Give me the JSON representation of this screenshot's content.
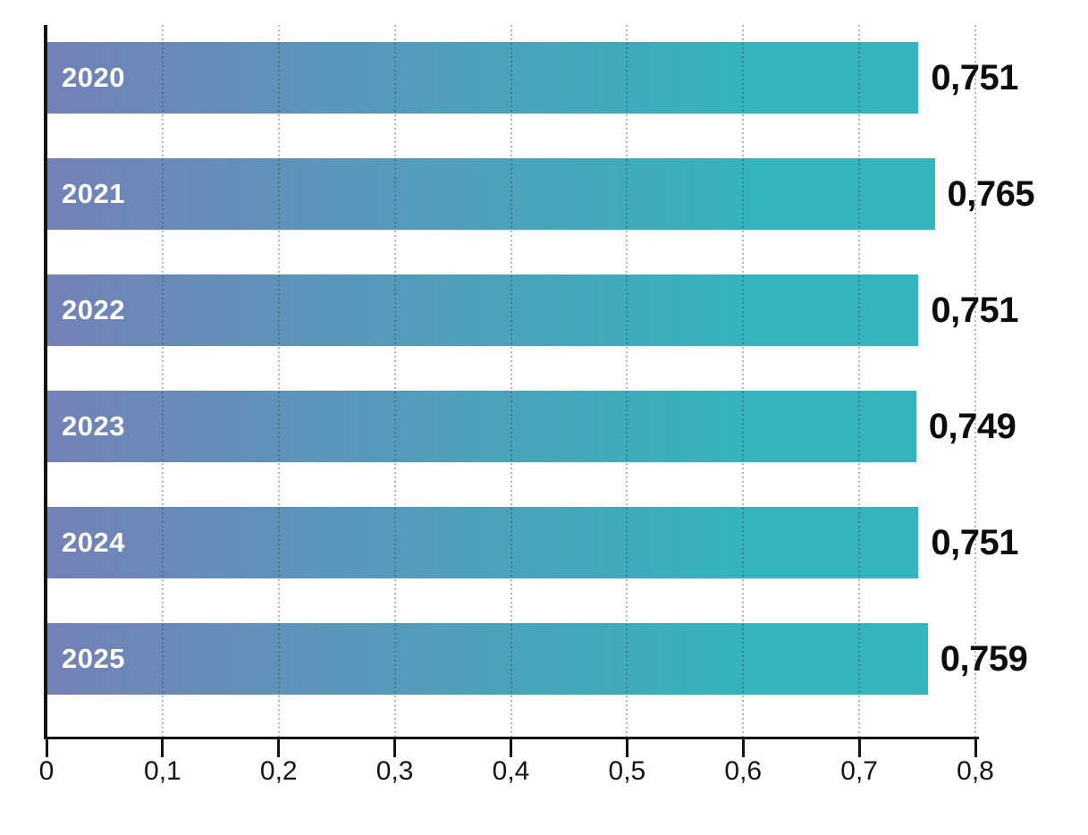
{
  "chart_data": {
    "type": "bar",
    "orientation": "horizontal",
    "title": "",
    "categories": [
      "2020",
      "2021",
      "2022",
      "2023",
      "2024",
      "2025"
    ],
    "values": [
      0.751,
      0.765,
      0.751,
      0.749,
      0.751,
      0.759
    ],
    "value_labels": [
      "0,751",
      "0,765",
      "0,751",
      "0,749",
      "0,751",
      "0,759"
    ],
    "series": [
      {
        "name": "value",
        "values": [
          0.751,
          0.765,
          0.751,
          0.749,
          0.751,
          0.759
        ]
      }
    ],
    "x_tick_labels": [
      "0",
      "0,1",
      "0,2",
      "0,3",
      "0,4",
      "0,5",
      "0,6",
      "0,7",
      "0,8"
    ],
    "x_tick_values": [
      0,
      0.1,
      0.2,
      0.3,
      0.4,
      0.5,
      0.6,
      0.7,
      0.8
    ],
    "xlim": [
      0,
      0.8
    ],
    "ylabel": "",
    "xlabel": "",
    "legend": "none",
    "grid": "vertical-dotted-over-bars",
    "decimal_separator": ",",
    "colors": {
      "background": "#FFFFFF",
      "bar_gradient_start": "#7481B8",
      "bar_gradient_end": "#34B4BC",
      "axis": "#141414",
      "gridline": "rgba(45,45,45,0.35)",
      "value_label": "#0D0D0D",
      "category_label": "#FFFFFF"
    }
  }
}
